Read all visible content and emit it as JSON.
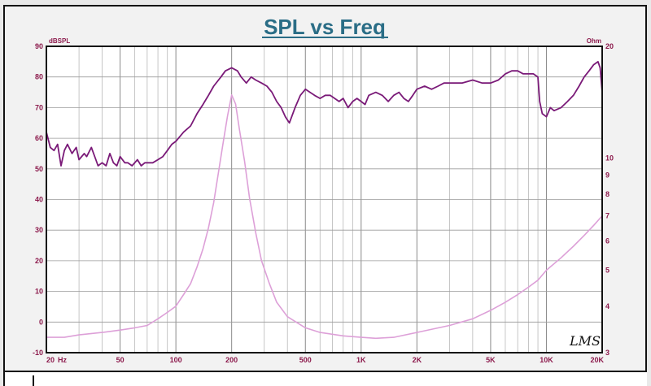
{
  "chart_data": {
    "type": "line",
    "title": "SPL vs Freq",
    "left_axis": {
      "unit": "dBSPL",
      "range": [
        -10,
        90
      ],
      "ticks": [
        -10,
        0,
        10,
        20,
        30,
        40,
        50,
        60,
        70,
        80,
        90
      ]
    },
    "right_axis": {
      "unit": "Ohm",
      "scale": "log",
      "range": [
        3,
        20
      ],
      "ticks": [
        {
          "value": 3,
          "label": "3"
        },
        {
          "value": 4,
          "label": "4"
        },
        {
          "value": 5,
          "label": "5"
        },
        {
          "value": 6,
          "label": "6"
        },
        {
          "value": 7,
          "label": "7"
        },
        {
          "value": 8,
          "label": "8"
        },
        {
          "value": 9,
          "label": "9"
        },
        {
          "value": 10,
          "label": "10"
        },
        {
          "value": 20,
          "label": "20"
        }
      ]
    },
    "x_axis": {
      "scale": "log",
      "range": [
        20,
        20000
      ],
      "ticks": [
        {
          "value": 20,
          "label": "20"
        },
        {
          "value": 50,
          "label": "50"
        },
        {
          "value": 100,
          "label": "100"
        },
        {
          "value": 200,
          "label": "200"
        },
        {
          "value": 500,
          "label": "500"
        },
        {
          "value": 1000,
          "label": "1K"
        },
        {
          "value": 2000,
          "label": "2K"
        },
        {
          "value": 5000,
          "label": "5K"
        },
        {
          "value": 10000,
          "label": "10K"
        },
        {
          "value": 20000,
          "label": "20K"
        }
      ],
      "unit_label": "Hz"
    },
    "grid": true,
    "series": [
      {
        "axis": "left",
        "color": "#7a1a78",
        "points": [
          [
            20,
            62
          ],
          [
            21,
            57
          ],
          [
            22,
            56
          ],
          [
            23,
            58
          ],
          [
            24,
            51
          ],
          [
            25,
            56
          ],
          [
            26,
            58
          ],
          [
            27.5,
            55
          ],
          [
            29,
            57
          ],
          [
            30,
            53
          ],
          [
            32,
            55
          ],
          [
            33,
            54
          ],
          [
            35,
            57
          ],
          [
            37,
            53
          ],
          [
            38,
            51
          ],
          [
            40,
            52
          ],
          [
            42,
            51
          ],
          [
            44,
            55
          ],
          [
            46,
            52
          ],
          [
            48,
            51
          ],
          [
            50,
            54
          ],
          [
            53,
            52
          ],
          [
            55,
            52
          ],
          [
            58,
            51
          ],
          [
            62,
            53
          ],
          [
            65,
            51
          ],
          [
            68,
            52
          ],
          [
            72,
            52
          ],
          [
            75,
            52
          ],
          [
            80,
            53
          ],
          [
            85,
            54
          ],
          [
            90,
            56
          ],
          [
            95,
            58
          ],
          [
            100,
            59
          ],
          [
            110,
            62
          ],
          [
            120,
            64
          ],
          [
            130,
            68
          ],
          [
            140,
            71
          ],
          [
            150,
            74
          ],
          [
            160,
            77
          ],
          [
            175,
            80
          ],
          [
            185,
            82
          ],
          [
            200,
            83
          ],
          [
            215,
            82
          ],
          [
            225,
            80
          ],
          [
            240,
            78
          ],
          [
            255,
            80
          ],
          [
            270,
            79
          ],
          [
            290,
            78
          ],
          [
            310,
            77
          ],
          [
            330,
            75
          ],
          [
            350,
            72
          ],
          [
            370,
            70
          ],
          [
            390,
            67
          ],
          [
            410,
            65
          ],
          [
            440,
            70
          ],
          [
            470,
            74
          ],
          [
            500,
            76
          ],
          [
            530,
            75
          ],
          [
            560,
            74
          ],
          [
            600,
            73
          ],
          [
            640,
            74
          ],
          [
            680,
            74
          ],
          [
            720,
            73
          ],
          [
            760,
            72
          ],
          [
            800,
            73
          ],
          [
            850,
            70
          ],
          [
            900,
            72
          ],
          [
            950,
            73
          ],
          [
            1000,
            72
          ],
          [
            1050,
            71
          ],
          [
            1100,
            74
          ],
          [
            1200,
            75
          ],
          [
            1300,
            74
          ],
          [
            1400,
            72
          ],
          [
            1500,
            74
          ],
          [
            1600,
            75
          ],
          [
            1700,
            73
          ],
          [
            1800,
            72
          ],
          [
            1900,
            74
          ],
          [
            2000,
            76
          ],
          [
            2200,
            77
          ],
          [
            2400,
            76
          ],
          [
            2600,
            77
          ],
          [
            2800,
            78
          ],
          [
            3000,
            78
          ],
          [
            3500,
            78
          ],
          [
            4000,
            79
          ],
          [
            4500,
            78
          ],
          [
            5000,
            78
          ],
          [
            5500,
            79
          ],
          [
            6000,
            81
          ],
          [
            6500,
            82
          ],
          [
            7000,
            82
          ],
          [
            7500,
            81
          ],
          [
            8000,
            81
          ],
          [
            8500,
            81
          ],
          [
            9000,
            80
          ],
          [
            9200,
            72
          ],
          [
            9500,
            68
          ],
          [
            10000,
            67
          ],
          [
            10500,
            70
          ],
          [
            11000,
            69
          ],
          [
            12000,
            70
          ],
          [
            13000,
            72
          ],
          [
            14000,
            74
          ],
          [
            15000,
            77
          ],
          [
            16000,
            80
          ],
          [
            17000,
            82
          ],
          [
            18000,
            84
          ],
          [
            19000,
            85
          ],
          [
            19500,
            83
          ],
          [
            20000,
            75
          ]
        ]
      },
      {
        "axis": "right",
        "color": "#dda0d8",
        "points": [
          [
            20,
            3.3
          ],
          [
            25,
            3.3
          ],
          [
            30,
            3.35
          ],
          [
            40,
            3.4
          ],
          [
            50,
            3.45
          ],
          [
            60,
            3.5
          ],
          [
            70,
            3.55
          ],
          [
            80,
            3.7
          ],
          [
            90,
            3.85
          ],
          [
            100,
            4.0
          ],
          [
            110,
            4.3
          ],
          [
            120,
            4.6
          ],
          [
            130,
            5.1
          ],
          [
            140,
            5.7
          ],
          [
            150,
            6.5
          ],
          [
            160,
            7.6
          ],
          [
            170,
            9.2
          ],
          [
            180,
            11.0
          ],
          [
            190,
            13.0
          ],
          [
            200,
            14.8
          ],
          [
            210,
            14.0
          ],
          [
            220,
            12.0
          ],
          [
            235,
            9.8
          ],
          [
            250,
            7.8
          ],
          [
            270,
            6.3
          ],
          [
            290,
            5.3
          ],
          [
            320,
            4.6
          ],
          [
            350,
            4.1
          ],
          [
            400,
            3.75
          ],
          [
            500,
            3.5
          ],
          [
            600,
            3.4
          ],
          [
            800,
            3.33
          ],
          [
            1000,
            3.3
          ],
          [
            1200,
            3.28
          ],
          [
            1500,
            3.3
          ],
          [
            2000,
            3.4
          ],
          [
            3000,
            3.55
          ],
          [
            4000,
            3.7
          ],
          [
            5000,
            3.9
          ],
          [
            6000,
            4.1
          ],
          [
            7000,
            4.3
          ],
          [
            8000,
            4.5
          ],
          [
            9000,
            4.7
          ],
          [
            10000,
            5.0
          ],
          [
            12000,
            5.4
          ],
          [
            14000,
            5.8
          ],
          [
            16000,
            6.2
          ],
          [
            18000,
            6.6
          ],
          [
            20000,
            7.0
          ]
        ]
      }
    ],
    "annotations": [
      "LMS"
    ]
  }
}
